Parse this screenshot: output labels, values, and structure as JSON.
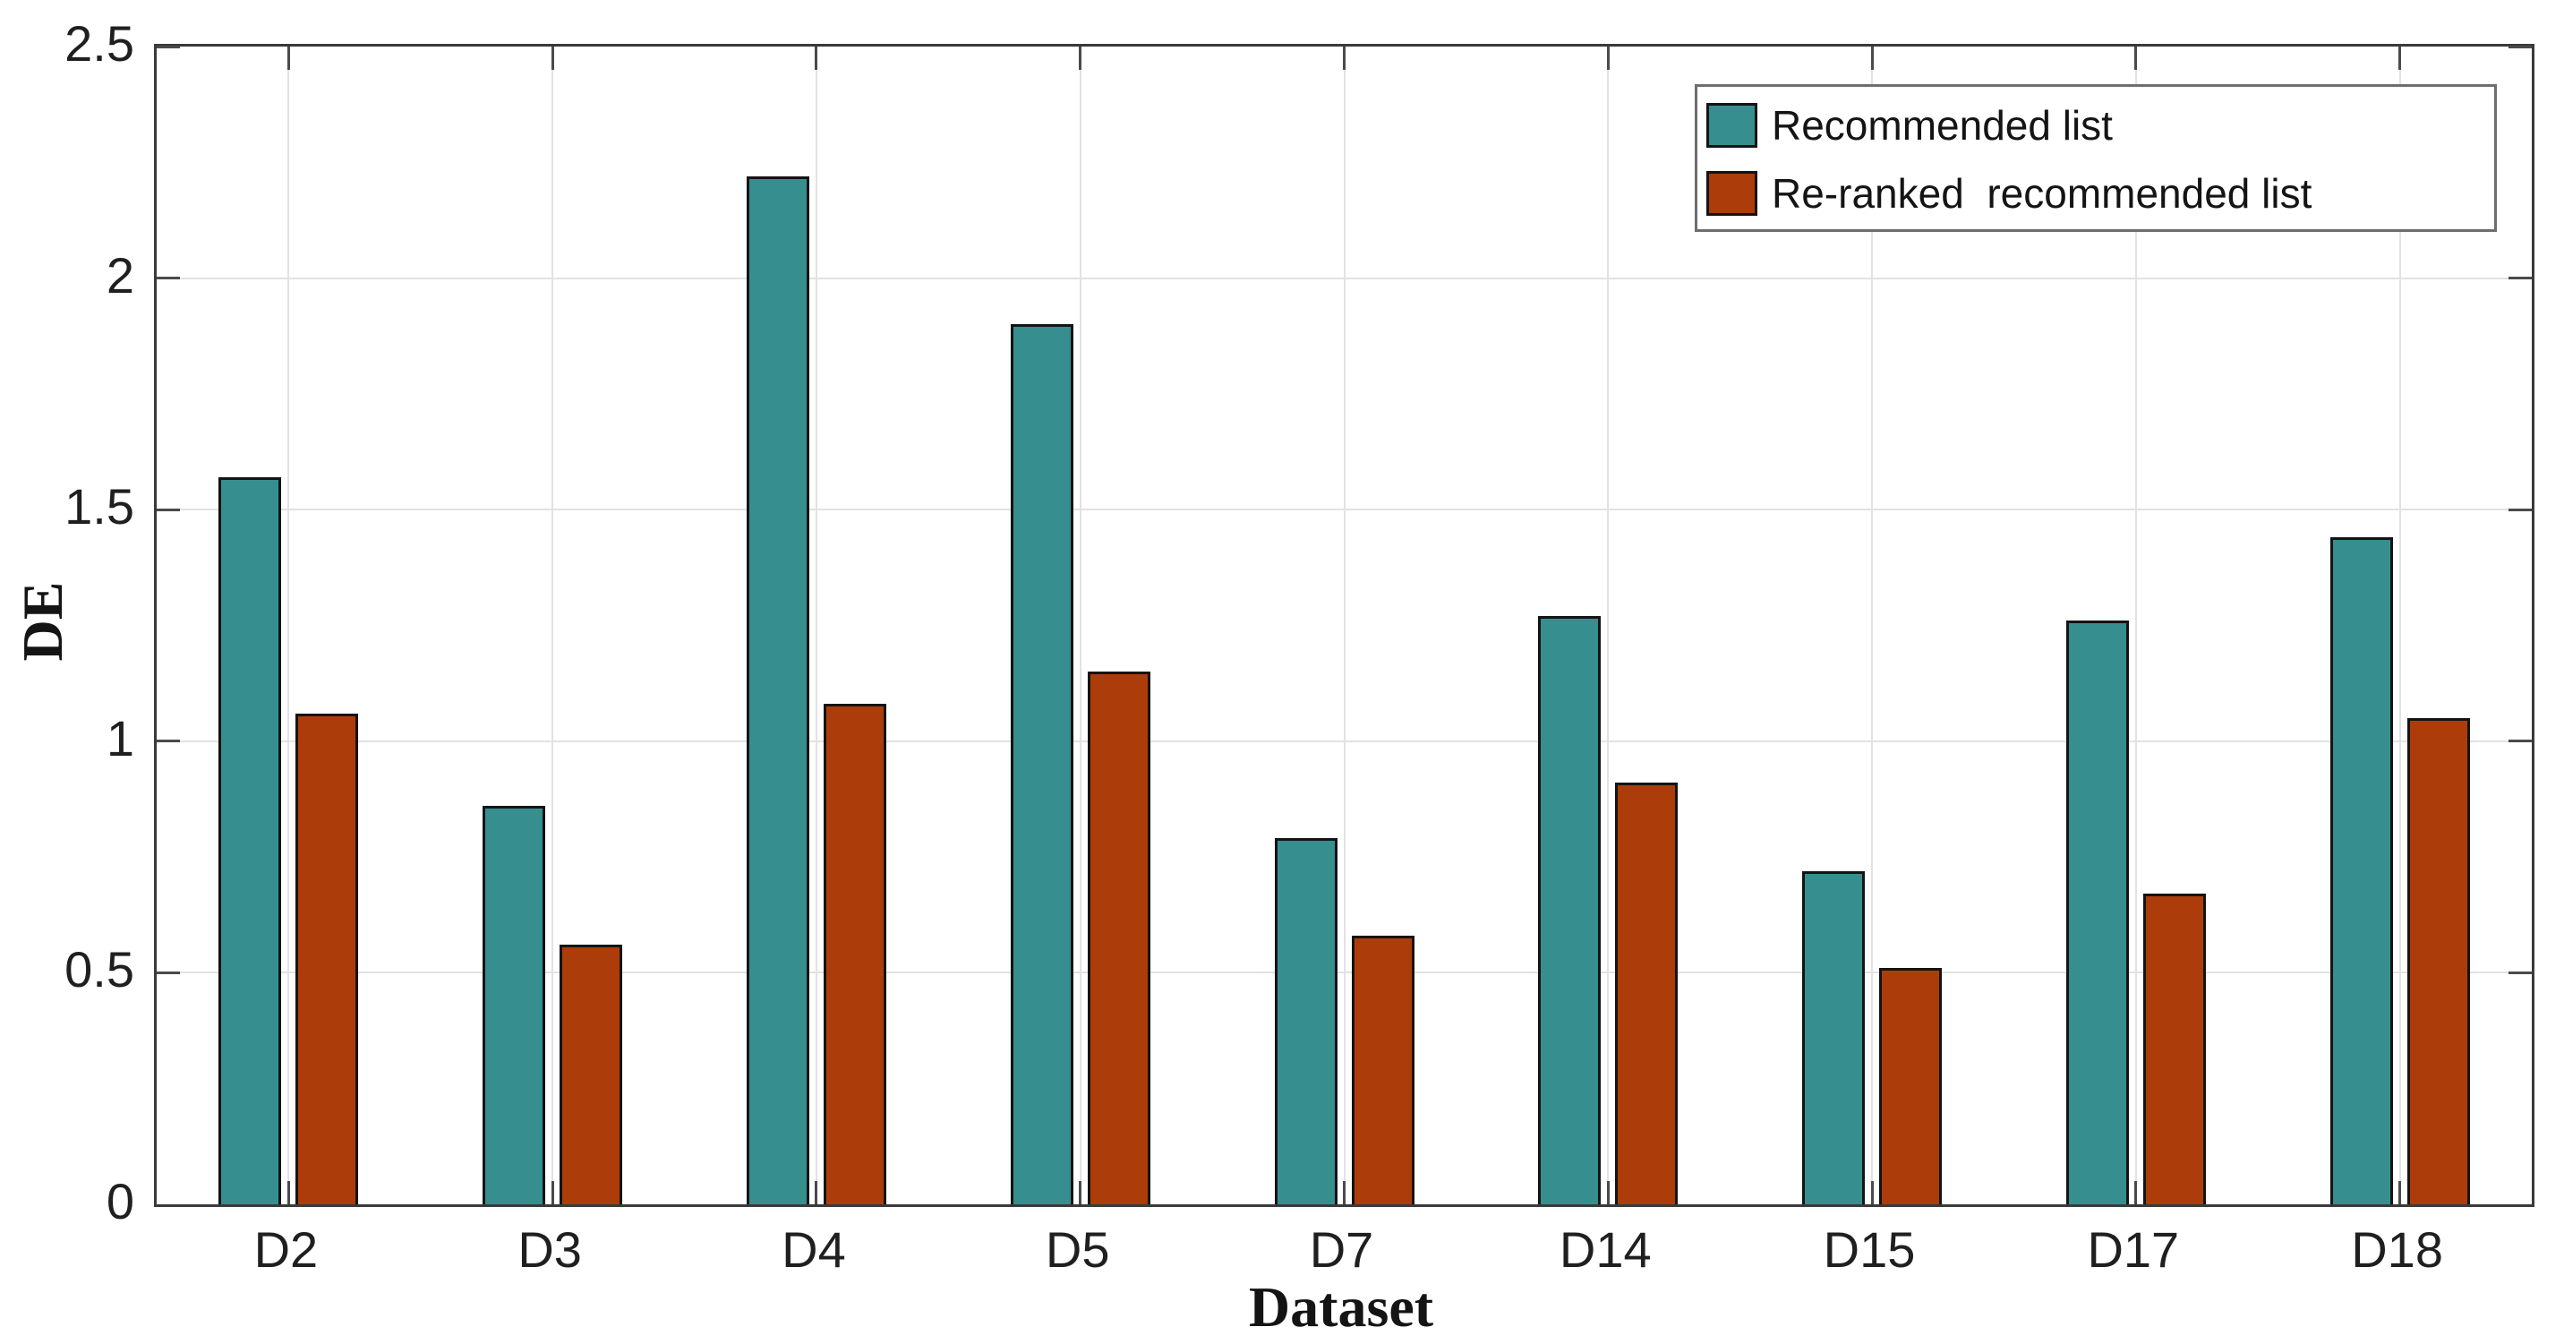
{
  "chart_data": {
    "type": "bar",
    "title": "",
    "xlabel": "Dataset",
    "ylabel": "DE",
    "categories": [
      "D2",
      "D3",
      "D4",
      "D5",
      "D7",
      "D14",
      "D15",
      "D17",
      "D18"
    ],
    "series": [
      {
        "name": "Recommended list",
        "color": "#368e8e",
        "values": [
          1.57,
          0.86,
          2.22,
          1.9,
          0.79,
          1.27,
          0.72,
          1.26,
          1.44
        ]
      },
      {
        "name": "Re-ranked  recommended list",
        "color": "#ac3d0a",
        "values": [
          1.06,
          0.56,
          1.08,
          1.15,
          0.58,
          0.91,
          0.51,
          0.67,
          1.05
        ]
      }
    ],
    "ylim": [
      0,
      2.5
    ],
    "yticks": [
      0,
      0.5,
      1,
      1.5,
      2,
      2.5
    ],
    "ytick_labels": [
      "0",
      "0.5",
      "1",
      "1.5",
      "2",
      "2.5"
    ],
    "grid": true,
    "legend_position": "top-right",
    "bar_edge_color": "#141414",
    "axis_color": "#3a3a3a",
    "grid_color": "#e2e2e2"
  }
}
